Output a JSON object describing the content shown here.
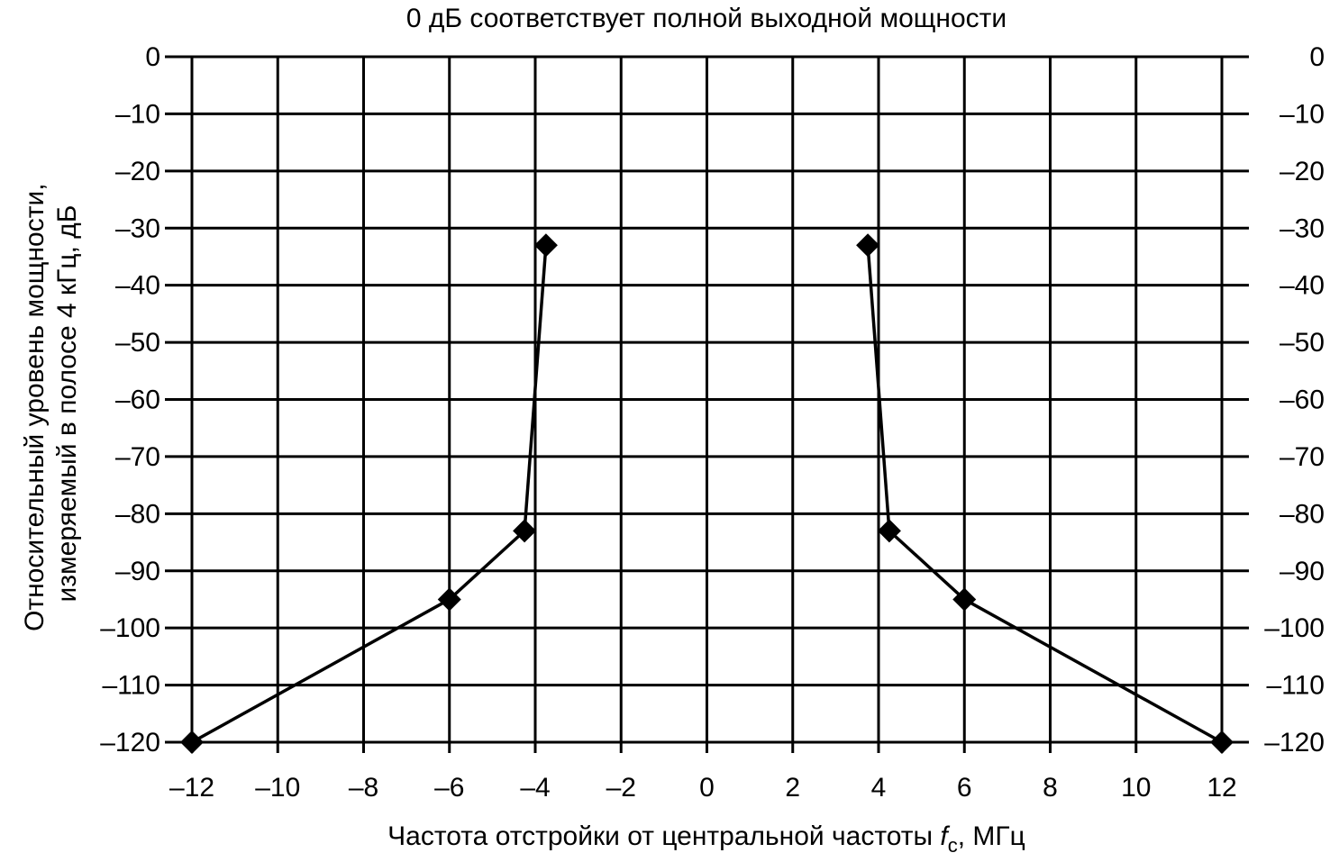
{
  "chart_data": {
    "type": "line",
    "title": "0 дБ соответствует полной выходной мощности",
    "ylabel_line1": "Относительный уровень мощности,",
    "ylabel_line2": "измеряемый в полосе 4 кГц, дБ",
    "xlabel_prefix": "Частота отстройки от центральной частоты ",
    "xlabel_symbol": "f",
    "xlabel_subscript": "c",
    "xlabel_suffix": ", МГц",
    "xlim": [
      -12,
      12
    ],
    "ylim": [
      -120,
      0
    ],
    "xticks": [
      -12,
      -10,
      -8,
      -6,
      -4,
      -2,
      0,
      2,
      4,
      6,
      8,
      10,
      12
    ],
    "yticks": [
      0,
      -10,
      -20,
      -30,
      -40,
      -50,
      -60,
      -70,
      -80,
      -90,
      -100,
      -110,
      -120
    ],
    "grid": true,
    "series": [
      {
        "points": [
          {
            "x": -12,
            "y": -120
          },
          {
            "x": -6,
            "y": -95
          },
          {
            "x": -4.25,
            "y": -83
          },
          {
            "x": -3.75,
            "y": -33
          }
        ]
      },
      {
        "points": [
          {
            "x": 3.75,
            "y": -33
          },
          {
            "x": 4.25,
            "y": -83
          },
          {
            "x": 6,
            "y": -95
          },
          {
            "x": 12,
            "y": -120
          }
        ]
      }
    ]
  }
}
